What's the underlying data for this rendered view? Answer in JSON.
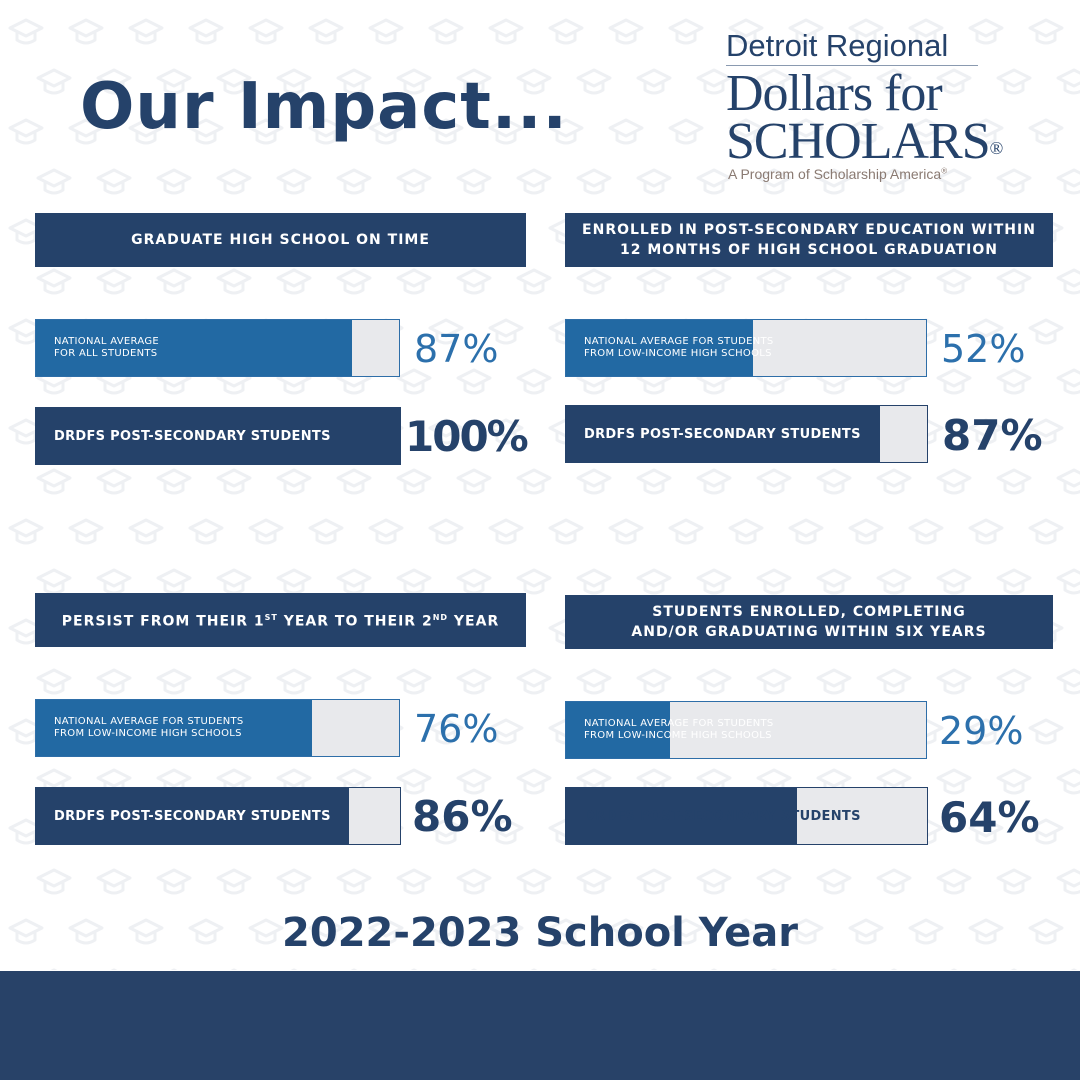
{
  "title": "Our Impact...",
  "logo": {
    "line1": "Detroit Regional",
    "line2": "Dollars for",
    "line3": "SCHOLARS",
    "registered": "®",
    "line4": "A Program of Scholarship America",
    "line4_registered": "®"
  },
  "footer": {
    "school_year": "2022-2023 School Year"
  },
  "colors": {
    "navy": "#25426a",
    "blue": "#2269a3",
    "track": "#e8e9ec",
    "footer_band": "#284268"
  },
  "chart_data": [
    {
      "type": "bar",
      "title": "GRADUATE HIGH SCHOOL ON TIME",
      "series": [
        {
          "name": "NATIONAL AVERAGE\nFOR ALL STUDENTS",
          "value": 87,
          "display": "87%"
        },
        {
          "name": "DRDFS POST-SECONDARY STUDENTS",
          "value": 100,
          "display": "100%"
        }
      ]
    },
    {
      "type": "bar",
      "title": "ENROLLED IN POST-SECONDARY EDUCATION WITHIN\n12 MONTHS OF HIGH SCHOOL GRADUATION",
      "series": [
        {
          "name": "NATIONAL AVERAGE FOR STUDENTS\nFROM LOW-INCOME HIGH SCHOOLS",
          "value": 52,
          "display": "52%"
        },
        {
          "name": "DRDFS POST-SECONDARY STUDENTS",
          "value": 87,
          "display": "87%"
        }
      ]
    },
    {
      "type": "bar",
      "title_parts": [
        "PERSIST FROM THEIR 1",
        "ST",
        " YEAR TO THEIR 2",
        "ND",
        " YEAR"
      ],
      "series": [
        {
          "name": "NATIONAL AVERAGE FOR STUDENTS\nFROM LOW-INCOME HIGH SCHOOLS",
          "value": 76,
          "display": "76%"
        },
        {
          "name": "DRDFS POST-SECONDARY STUDENTS",
          "value": 86,
          "display": "86%"
        }
      ]
    },
    {
      "type": "bar",
      "title": "STUDENTS ENROLLED, COMPLETING\nAND/OR GRADUATING WITHIN SIX YEARS",
      "series": [
        {
          "name": "NATIONAL AVERAGE FOR STUDENTS\nFROM LOW-INCOME HIGH SCHOOLS",
          "value": 29,
          "display": "29%"
        },
        {
          "name": "DRDFS POST-SECONDARY STUDENTS",
          "value": 64,
          "display": "64%"
        }
      ]
    }
  ]
}
